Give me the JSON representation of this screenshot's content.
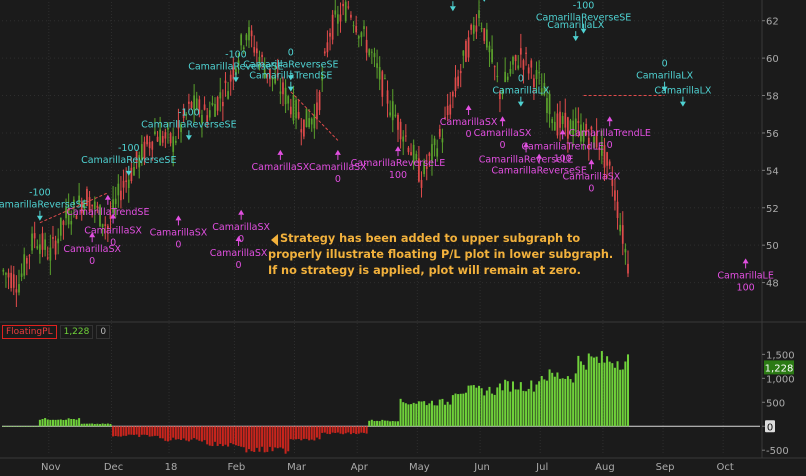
{
  "colors": {
    "background": "#1b1b1b",
    "grid": "#2e2e2e",
    "up_candle": "#5aa12c",
    "down_candle": "#e04b4b",
    "positive_bar": "#6fd13a",
    "negative_bar": "#c8251d",
    "sell_signal": "#4fd2d2",
    "buy_signal": "#e14fe0",
    "callout": "#f2b13c",
    "axis_text": "#aaaaaa"
  },
  "study_header": {
    "name": "FloatingPL",
    "value": "1,228",
    "zero": "0"
  },
  "callout": {
    "line1": "Strategy has been added to upper subgraph to",
    "line2": "properly illustrate floating P/L plot in lower subgraph.",
    "line3": "If no strategy is applied, plot will remain at zero."
  },
  "chart_data": [
    {
      "type": "candlestick",
      "title": "",
      "ylim": [
        46,
        63
      ],
      "y_ticks": [
        "48",
        "50",
        "52",
        "54",
        "56",
        "58",
        "60",
        "62"
      ],
      "grid": true,
      "trend_points": {
        "x": [
          0,
          6,
          12,
          18,
          24,
          32,
          40,
          45,
          52,
          58,
          65,
          72,
          78,
          86,
          93,
          100,
          108,
          115,
          120,
          125,
          132,
          140,
          148,
          155,
          160,
          168,
          176,
          182,
          190,
          198,
          205,
          212,
          220,
          228,
          233,
          239
        ],
        "y": [
          48.6,
          48.0,
          50.5,
          49.5,
          51.5,
          52.6,
          51.0,
          53.0,
          54.6,
          56.0,
          55.5,
          57.5,
          57.0,
          58.5,
          61.5,
          59.5,
          58.0,
          56.5,
          57.0,
          61.5,
          62.8,
          60.5,
          57.5,
          55.5,
          53.6,
          56.0,
          59.8,
          62.5,
          58.2,
          60.2,
          58.7,
          56.5,
          56.2,
          55.5,
          53.5,
          49.0
        ]
      },
      "signals": [
        {
          "kind": "sell",
          "name": "CamarillaReverseSE",
          "qty": "-100",
          "x": 14,
          "price": 51.2
        },
        {
          "kind": "buy",
          "name": "CamarillaTrendSE",
          "qty": "",
          "x": 40,
          "price": 52.8
        },
        {
          "kind": "buy",
          "name": "CamarillaSX",
          "qty": "0",
          "x": 42,
          "price": 51.8
        },
        {
          "kind": "buy",
          "name": "CamarillaSX",
          "qty": "0",
          "x": 34,
          "price": 50.8
        },
        {
          "kind": "sell",
          "name": "CamarillaReverseSE",
          "qty": "-100",
          "x": 48,
          "price": 53.6
        },
        {
          "kind": "buy",
          "name": "CamarillaSX",
          "qty": "0",
          "x": 67,
          "price": 51.7
        },
        {
          "kind": "sell",
          "name": "CamarillaReverseSE",
          "qty": "-100",
          "x": 71,
          "price": 55.5
        },
        {
          "kind": "buy",
          "name": "CamarillaSX",
          "qty": "0",
          "x": 90,
          "price": 50.6
        },
        {
          "kind": "sell",
          "name": "CamarillaReverseSE",
          "qty": "-100",
          "x": 89,
          "price": 58.6
        },
        {
          "kind": "sell",
          "name": "CamarillaReverseSE",
          "qty": "0",
          "x": 110,
          "price": 58.7
        },
        {
          "kind": "sell",
          "name": "CamarillaTrendSE",
          "qty": "",
          "x": 110,
          "price": 58.1
        },
        {
          "kind": "buy",
          "name": "CamarillaSX",
          "qty": "",
          "x": 106,
          "price": 55.2
        },
        {
          "kind": "buy",
          "name": "CamarillaSX",
          "qty": "0",
          "x": 128,
          "price": 55.2
        },
        {
          "kind": "buy",
          "name": "CamarillaReverseLE",
          "qty": "100",
          "x": 151,
          "price": 55.4
        },
        {
          "kind": "sell",
          "name": "CamarillaReverseSE",
          "qty": "",
          "x": 184,
          "price": 62.9
        },
        {
          "kind": "sell",
          "name": "CamarillaLX",
          "qty": "",
          "x": 172,
          "price": 62.4
        },
        {
          "kind": "buy",
          "name": "CamarillaSX",
          "qty": "0",
          "x": 178,
          "price": 57.6
        },
        {
          "kind": "buy",
          "name": "CamarillaSX",
          "qty": "0",
          "x": 191,
          "price": 57.0
        },
        {
          "kind": "sell",
          "name": "CamarillaLX",
          "qty": "0",
          "x": 198,
          "price": 57.3
        },
        {
          "kind": "buy",
          "name": "CamarillaReverseLE",
          "qty": "",
          "x": 200,
          "price": 55.6
        },
        {
          "kind": "buy",
          "name": "CamarillaReverseSE",
          "qty": "",
          "x": 205,
          "price": 55.0
        },
        {
          "kind": "buy",
          "name": "CamarillaTrendLE",
          "qty": "100",
          "x": 214,
          "price": 56.3
        },
        {
          "kind": "buy",
          "name": "CamarillaSX",
          "qty": "0",
          "x": 225,
          "price": 54.7
        },
        {
          "kind": "sell",
          "name": "CamarillaReverseSE",
          "qty": "-100",
          "x": 222,
          "price": 61.2
        },
        {
          "kind": "sell",
          "name": "CamarillaLX",
          "qty": "",
          "x": 219,
          "price": 60.8
        },
        {
          "kind": "buy",
          "name": "CamarillaTrendLE",
          "qty": "0",
          "x": 232,
          "price": 57.0
        },
        {
          "kind": "sell",
          "name": "CamarillaLX",
          "qty": "0",
          "x": 253,
          "price": 58.1
        },
        {
          "kind": "sell",
          "name": "CamarillaLX",
          "qty": "",
          "x": 260,
          "price": 57.3
        },
        {
          "kind": "buy",
          "name": "CamarillaSX",
          "qty": "0",
          "x": 91,
          "price": 52.0
        },
        {
          "kind": "buy",
          "name": "CamarillaLE",
          "qty": "100",
          "x": 284,
          "price": 49.4
        }
      ]
    },
    {
      "type": "bar",
      "title": "FloatingPL",
      "ylim": [
        -600,
        1800
      ],
      "y_ticks": [
        "1,500",
        "1,000",
        "500",
        "0",
        "-500"
      ],
      "last_value": "1,228",
      "x_tick_labels": [
        "Nov",
        "Dec",
        "18",
        "Feb",
        "Mar",
        "Apr",
        "May",
        "Jun",
        "Jul",
        "Aug",
        "Sep",
        "Oct"
      ],
      "segments": [
        {
          "from": 0,
          "to": 14,
          "value": 0
        },
        {
          "from": 14,
          "to": 30,
          "value": 150
        },
        {
          "from": 30,
          "to": 42,
          "value": 50
        },
        {
          "from": 42,
          "to": 60,
          "value": -200
        },
        {
          "from": 60,
          "to": 78,
          "value": -280
        },
        {
          "from": 78,
          "to": 92,
          "value": -380
        },
        {
          "from": 92,
          "to": 110,
          "value": -500
        },
        {
          "from": 110,
          "to": 122,
          "value": -260
        },
        {
          "from": 122,
          "to": 140,
          "value": -150
        },
        {
          "from": 140,
          "to": 152,
          "value": 120
        },
        {
          "from": 152,
          "to": 172,
          "value": 500
        },
        {
          "from": 172,
          "to": 190,
          "value": 750
        },
        {
          "from": 190,
          "to": 205,
          "value": 850
        },
        {
          "from": 205,
          "to": 220,
          "value": 1050
        },
        {
          "from": 220,
          "to": 240,
          "value": 1380
        },
        {
          "from": 240,
          "to": 260,
          "value": 1500
        },
        {
          "from": 260,
          "to": 290,
          "value": 1228
        }
      ]
    }
  ]
}
